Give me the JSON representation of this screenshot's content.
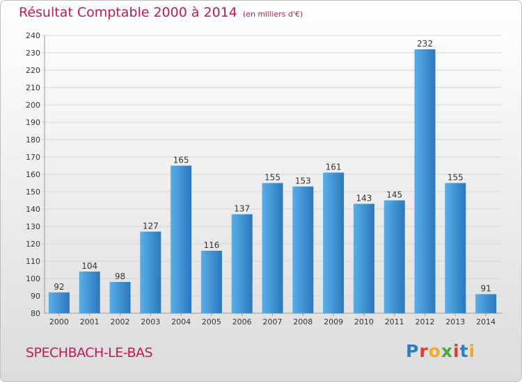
{
  "header": {
    "title": "Résultat Comptable 2000 à 2014",
    "unit_note": "(en milliers d'€)"
  },
  "footer": {
    "commune": "SPECHBACH-LE-BAS",
    "logo_letters": [
      "P",
      "r",
      "o",
      "x",
      "i",
      "t",
      "i"
    ],
    "logo_colors": [
      "#2d7fc1",
      "#e8382e",
      "#f4a81d",
      "#4aa83b",
      "#e8382e",
      "#2d7fc1",
      "#f4a81d"
    ]
  },
  "colors": {
    "bar_light": "#5aaee8",
    "bar_dark": "#2a78bd",
    "title": "#c2185b",
    "grid": "#d4d4d4"
  },
  "chart_data": {
    "type": "bar",
    "title": "Résultat Comptable 2000 à 2014",
    "subtitle": "(en milliers d'€)",
    "categories": [
      "2000",
      "2001",
      "2002",
      "2003",
      "2004",
      "2005",
      "2006",
      "2007",
      "2008",
      "2009",
      "2010",
      "2011",
      "2012",
      "2013",
      "2014"
    ],
    "values": [
      92,
      104,
      98,
      127,
      165,
      116,
      137,
      155,
      153,
      161,
      143,
      145,
      232,
      155,
      91
    ],
    "ylim": [
      80,
      240
    ],
    "ytick_step": 10,
    "grid": true,
    "legend": "none"
  }
}
